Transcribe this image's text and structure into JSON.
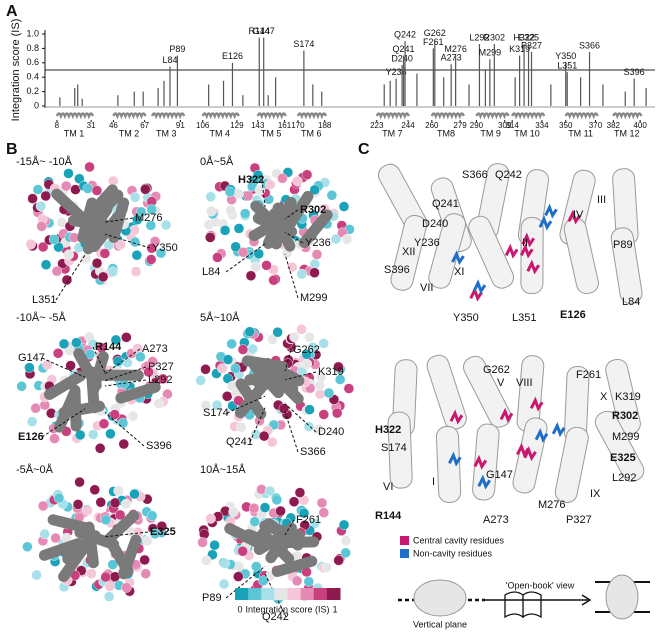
{
  "chart_data": {
    "type": "bar",
    "y_label": "Integration score (IS)",
    "xlim": [
      0,
      410
    ],
    "ylim": [
      0,
      1
    ],
    "yticks": [
      0,
      0.2,
      0.4,
      0.6,
      0.8,
      {
        "value": 1,
        "label": "1.0"
      }
    ],
    "threshold": 0.5,
    "color": "#555555",
    "x": [
      10,
      20,
      22,
      25,
      49,
      60,
      66,
      76,
      80,
      84,
      89,
      110,
      120,
      126,
      133,
      144,
      147,
      150,
      155,
      174,
      180,
      186,
      228,
      232,
      236,
      240,
      241,
      242,
      250,
      261,
      262,
      268,
      273,
      276,
      285,
      292,
      296,
      299,
      302,
      316,
      319,
      322,
      325,
      327,
      340,
      350,
      351,
      360,
      366,
      375,
      390,
      396,
      404
    ],
    "values": [
      0.12,
      0.25,
      0.3,
      0.1,
      0.15,
      0.2,
      0.2,
      0.25,
      0.35,
      0.55,
      0.7,
      0.3,
      0.35,
      0.6,
      0.15,
      0.95,
      0.95,
      0.15,
      0.4,
      0.77,
      0.3,
      0.2,
      0.3,
      0.35,
      0.38,
      0.57,
      0.7,
      0.9,
      0.45,
      0.8,
      0.92,
      0.4,
      0.58,
      0.7,
      0.3,
      0.86,
      0.5,
      0.65,
      0.86,
      0.4,
      0.7,
      0.86,
      0.86,
      0.75,
      0.3,
      0.6,
      0.47,
      0.4,
      0.75,
      0.3,
      0.2,
      0.38,
      0.25
    ],
    "bar_labels": [
      null,
      null,
      null,
      null,
      null,
      null,
      null,
      null,
      null,
      "L84",
      "P89",
      null,
      null,
      "E126",
      null,
      "R144",
      "G147",
      null,
      null,
      "S174",
      null,
      null,
      null,
      null,
      "Y236",
      "D240",
      "Q241",
      "Q242",
      null,
      "F261",
      "G262",
      null,
      "A273",
      "M276",
      null,
      "L292",
      null,
      "M299",
      "R302",
      null,
      "K319",
      "H322",
      "E325",
      "P327",
      null,
      "Y350",
      "L351",
      null,
      "S366",
      null,
      null,
      "S396",
      null
    ],
    "xticks": [
      8,
      31,
      46,
      67,
      91,
      106,
      129,
      143,
      161,
      170,
      188,
      223,
      244,
      260,
      279,
      290,
      309,
      314,
      334,
      350,
      370,
      382,
      400
    ],
    "segments": [
      {
        "name": "TM 1",
        "range": [
          8,
          31
        ]
      },
      {
        "name": "TM 2",
        "range": [
          46,
          67
        ]
      },
      {
        "name": "TM 3",
        "range": [
          72,
          91
        ]
      },
      {
        "name": "TM 4",
        "range": [
          106,
          129
        ]
      },
      {
        "name": "TM 5",
        "range": [
          143,
          161
        ]
      },
      {
        "name": "TM 6",
        "range": [
          170,
          188
        ]
      },
      {
        "name": "TM 7",
        "range": [
          223,
          244
        ]
      },
      {
        "name": "TM8",
        "range": [
          260,
          279
        ]
      },
      {
        "name": "TM 9",
        "range": [
          290,
          309
        ]
      },
      {
        "name": "TM 10",
        "range": [
          314,
          334
        ]
      },
      {
        "name": "TM 11",
        "range": [
          350,
          370
        ]
      },
      {
        "name": "TM 12",
        "range": [
          382,
          400
        ]
      }
    ]
  },
  "panel_labels": [
    "A",
    "B",
    "C"
  ],
  "panel_b": {
    "slices": [
      {
        "title": "-15Å~ -10Å",
        "residues": [
          {
            "label": "M276"
          },
          {
            "label": "Y350"
          },
          {
            "label": "L351"
          }
        ]
      },
      {
        "title": "0Å~5Å",
        "residues": [
          {
            "label": "H322",
            "bold": true
          },
          {
            "label": "R302",
            "bold": true
          },
          {
            "label": "Y236"
          },
          {
            "label": "L84"
          },
          {
            "label": "M299"
          }
        ]
      },
      {
        "title": "-10Å~ -5Å",
        "residues": [
          {
            "label": "R144",
            "bold": true
          },
          {
            "label": "A273"
          },
          {
            "label": "G147"
          },
          {
            "label": "P327"
          },
          {
            "label": "L292"
          },
          {
            "label": "E126",
            "bold": true
          },
          {
            "label": "S396"
          }
        ]
      },
      {
        "title": "5Å~10Å",
        "residues": [
          {
            "label": "G262"
          },
          {
            "label": "K319"
          },
          {
            "label": "S174"
          },
          {
            "label": "D240"
          },
          {
            "label": "Q241"
          },
          {
            "label": "S366"
          }
        ]
      },
      {
        "title": "-5Å~0Å",
        "residues": [
          {
            "label": "E325",
            "bold": true
          }
        ]
      },
      {
        "title": "10Å~15Å",
        "residues": [
          {
            "label": "F261"
          },
          {
            "label": "P89"
          },
          {
            "label": "Q242"
          }
        ]
      }
    ],
    "colorbar": {
      "min": 0,
      "max": 1,
      "label": "Integration score (IS)",
      "colors": [
        "#1aa3b8",
        "#5cc6d6",
        "#a8e0ea",
        "#e6e6e6",
        "#f5c6d8",
        "#e58ab4",
        "#c9407f",
        "#8e1a4f"
      ]
    }
  },
  "panel_c": {
    "top": [
      "S366",
      "Q242",
      "Q241",
      "D240",
      "Y236",
      "S396",
      "XII",
      "VII",
      "XI",
      "II",
      "IV",
      "III",
      "P89",
      "L84",
      "Y350",
      "L351",
      {
        "label": "E126",
        "bold": true
      }
    ],
    "bottom": [
      "G262",
      "F261",
      "V",
      "VIII",
      "X",
      "K319",
      {
        "label": "H322",
        "bold": true
      },
      {
        "label": "R302",
        "bold": true
      },
      "S174",
      "M299",
      {
        "label": "E325",
        "bold": true
      },
      "VI",
      "I",
      "G147",
      "L292",
      "IX",
      {
        "label": "R144",
        "bold": true
      },
      "M276",
      "A273",
      "P327"
    ],
    "legend": [
      {
        "label": "Central cavity residues",
        "color": "#c8196e"
      },
      {
        "label": "Non-cavity residues",
        "color": "#1f6fc8"
      }
    ],
    "open_book": "'Open-book' view",
    "vertical_plane": "Vertical plane"
  }
}
